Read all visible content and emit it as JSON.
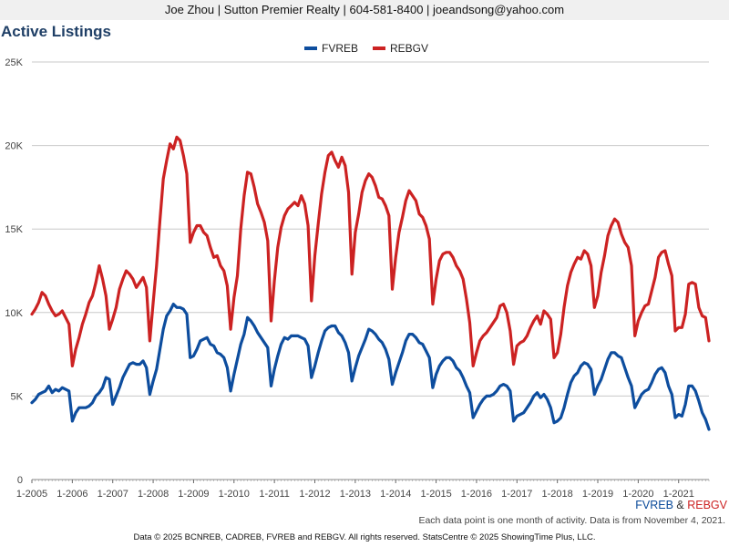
{
  "header": {
    "banner": "Joe Zhou | Sutton Premier Realty | 604-581-8400 | joeandsong@yahoo.com"
  },
  "footer": {
    "brand_a": "FVREB",
    "brand_and": " & ",
    "brand_b": "REBGV",
    "note": "Each data point is one month of activity. Data is from November 4, 2021.",
    "copyright": "Data © 2025 BCNREB, CADREB, FVREB and REBGV. All rights reserved. StatsCentre © 2025 ShowingTime Plus, LLC."
  },
  "chart_data": {
    "type": "line",
    "title": "Active Listings",
    "x_start": "2005-01",
    "x_end": "2021-10",
    "x_ticks": [
      "1-2005",
      "1-2006",
      "1-2007",
      "1-2008",
      "1-2009",
      "1-2010",
      "1-2011",
      "1-2012",
      "1-2013",
      "1-2014",
      "1-2015",
      "1-2016",
      "1-2017",
      "1-2018",
      "1-2019",
      "1-2020",
      "1-2021"
    ],
    "ylim": [
      0,
      25000
    ],
    "y_ticks": [
      0,
      5000,
      10000,
      15000,
      20000,
      25000
    ],
    "y_tick_labels": [
      "0",
      "5K",
      "10K",
      "15K",
      "20K",
      "25K"
    ],
    "grid": true,
    "legend": "top-center",
    "series": [
      {
        "name": "FVREB",
        "color": "#0d4d9e",
        "values": [
          4600,
          4800,
          5100,
          5200,
          5300,
          5600,
          5200,
          5400,
          5300,
          5500,
          5400,
          5300,
          3500,
          4000,
          4300,
          4300,
          4300,
          4400,
          4600,
          5000,
          5200,
          5500,
          6100,
          6000,
          4500,
          5000,
          5500,
          6100,
          6500,
          6900,
          7000,
          6900,
          6900,
          7100,
          6700,
          5100,
          5900,
          6600,
          7800,
          9000,
          9800,
          10100,
          10500,
          10300,
          10300,
          10200,
          9900,
          7300,
          7400,
          7800,
          8300,
          8400,
          8500,
          8100,
          8000,
          7600,
          7500,
          7300,
          6700,
          5300,
          6300,
          7200,
          8100,
          8700,
          9700,
          9500,
          9200,
          8800,
          8500,
          8200,
          7900,
          5600,
          6600,
          7400,
          8100,
          8500,
          8400,
          8600,
          8600,
          8600,
          8500,
          8400,
          8000,
          6100,
          6800,
          7600,
          8300,
          8900,
          9100,
          9200,
          9200,
          8800,
          8600,
          8200,
          7600,
          5900,
          6700,
          7400,
          7900,
          8400,
          9000,
          8900,
          8700,
          8400,
          8200,
          7800,
          7200,
          5700,
          6400,
          7000,
          7600,
          8300,
          8700,
          8700,
          8500,
          8200,
          8100,
          7700,
          7300,
          5500,
          6300,
          6800,
          7100,
          7300,
          7300,
          7100,
          6700,
          6500,
          6100,
          5600,
          5200,
          3700,
          4100,
          4500,
          4800,
          5000,
          5000,
          5100,
          5300,
          5600,
          5700,
          5600,
          5300,
          3500,
          3800,
          3900,
          4000,
          4300,
          4600,
          5000,
          5200,
          4900,
          5100,
          4800,
          4300,
          3400,
          3500,
          3700,
          4300,
          5100,
          5800,
          6200,
          6400,
          6800,
          7000,
          6900,
          6600,
          5100,
          5600,
          6000,
          6600,
          7200,
          7600,
          7600,
          7400,
          7300,
          6700,
          6100,
          5600,
          4300,
          4700,
          5100,
          5300,
          5400,
          5800,
          6300,
          6600,
          6700,
          6400,
          5600,
          5100,
          3700,
          3900,
          3800,
          4500,
          5600,
          5600,
          5300,
          4700,
          4000,
          3600,
          3000
        ]
      },
      {
        "name": "REBGV",
        "color": "#cc2222",
        "values": [
          9900,
          10200,
          10600,
          11200,
          11000,
          10500,
          10100,
          9800,
          9900,
          10100,
          9700,
          9300,
          6800,
          7800,
          8500,
          9300,
          9900,
          10600,
          11000,
          11800,
          12800,
          12000,
          11000,
          9000,
          9600,
          10300,
          11400,
          12000,
          12500,
          12300,
          12000,
          11500,
          11800,
          12100,
          11500,
          8300,
          10600,
          12800,
          15500,
          18000,
          19100,
          20100,
          19800,
          20500,
          20300,
          19400,
          18300,
          14200,
          14800,
          15200,
          15200,
          14800,
          14600,
          13900,
          13300,
          13400,
          12800,
          12500,
          11600,
          9000,
          10900,
          12200,
          15000,
          17000,
          18400,
          18300,
          17500,
          16500,
          16000,
          15400,
          14300,
          9500,
          11900,
          13900,
          15100,
          15800,
          16200,
          16400,
          16600,
          16400,
          17000,
          16500,
          15200,
          10700,
          13400,
          15300,
          17100,
          18400,
          19400,
          19600,
          19100,
          18700,
          19300,
          18800,
          17200,
          12300,
          14800,
          15900,
          17200,
          17900,
          18300,
          18100,
          17600,
          16900,
          16800,
          16400,
          15800,
          11400,
          13300,
          14800,
          15700,
          16700,
          17300,
          17000,
          16700,
          15900,
          15700,
          15200,
          14400,
          10500,
          12000,
          13100,
          13500,
          13600,
          13600,
          13300,
          12800,
          12500,
          12000,
          10800,
          9400,
          6800,
          7600,
          8300,
          8600,
          8800,
          9100,
          9400,
          9700,
          10400,
          10500,
          10000,
          8900,
          6900,
          8000,
          8200,
          8300,
          8600,
          9100,
          9500,
          9800,
          9300,
          10100,
          9900,
          9600,
          7300,
          7600,
          8700,
          10300,
          11600,
          12400,
          12900,
          13300,
          13200,
          13700,
          13500,
          12800,
          10300,
          11000,
          12400,
          13400,
          14600,
          15200,
          15600,
          15400,
          14700,
          14200,
          13900,
          12800,
          8600,
          9500,
          10000,
          10400,
          10500,
          11300,
          12100,
          13300,
          13600,
          13700,
          12900,
          12200,
          8900,
          9100,
          9100,
          9900,
          11700,
          11800,
          11700,
          10300,
          9800,
          9700,
          8300
        ]
      }
    ]
  }
}
